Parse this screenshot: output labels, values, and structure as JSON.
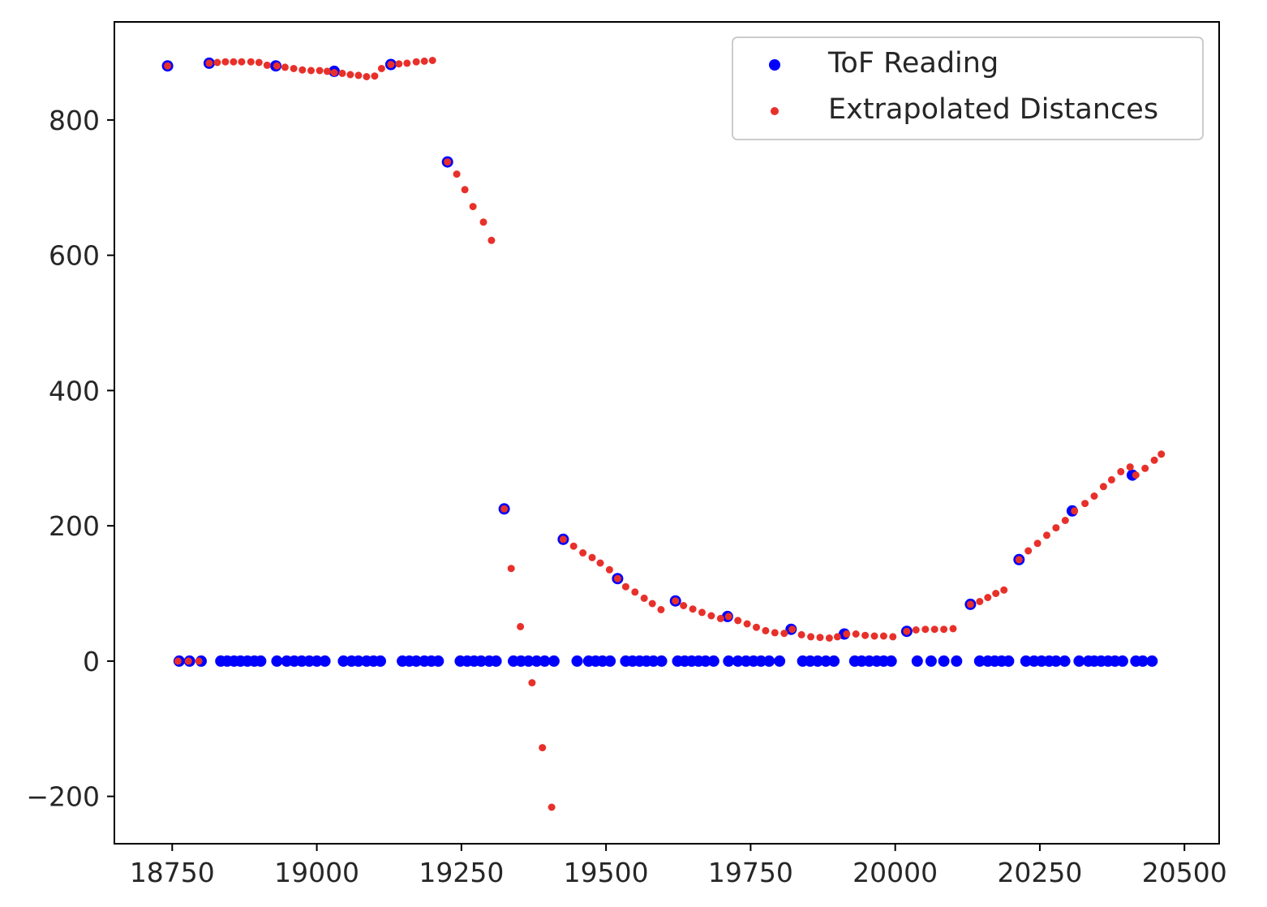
{
  "chart_data": {
    "type": "scatter",
    "title": "",
    "xlabel": "",
    "ylabel": "",
    "xlim": [
      18650,
      20560
    ],
    "ylim": [
      -270,
      945
    ],
    "x_ticks": [
      18750,
      19000,
      19250,
      19500,
      19750,
      20000,
      20250,
      20500
    ],
    "y_ticks": [
      -200,
      0,
      200,
      400,
      600,
      800
    ],
    "x_tick_labels": [
      "18750",
      "19000",
      "19250",
      "19500",
      "19750",
      "20000",
      "20250",
      "20500"
    ],
    "y_tick_labels": [
      "−200",
      "0",
      "200",
      "400",
      "600",
      "800"
    ],
    "grid": false,
    "legend_position": "top-right",
    "colors": {
      "tof": "#0000ff",
      "extrapolated": "#e8302a",
      "axes": "#000000",
      "legend_border": "#cccccc"
    },
    "series": [
      {
        "name": "ToF Reading",
        "x": [
          18742,
          18762,
          18780,
          18800,
          18814,
          18834,
          18845,
          18857,
          18868,
          18880,
          18892,
          18903,
          18929,
          18931,
          18948,
          18961,
          18974,
          18987,
          19000,
          19014,
          19030,
          19046,
          19060,
          19072,
          19086,
          19098,
          19110,
          19128,
          19148,
          19160,
          19172,
          19186,
          19198,
          19210,
          19226,
          19248,
          19260,
          19272,
          19284,
          19298,
          19310,
          19324,
          19340,
          19353,
          19366,
          19380,
          19394,
          19410,
          19426,
          19450,
          19470,
          19482,
          19494,
          19507,
          19520,
          19534,
          19546,
          19558,
          19570,
          19582,
          19596,
          19620,
          19624,
          19636,
          19648,
          19660,
          19672,
          19686,
          19710,
          19712,
          19728,
          19742,
          19755,
          19768,
          19782,
          19800,
          19820,
          19840,
          19853,
          19866,
          19880,
          19894,
          19912,
          19930,
          19942,
          19955,
          19968,
          19980,
          19993,
          20020,
          20038,
          20062,
          20084,
          20106,
          20130,
          20146,
          20160,
          20172,
          20184,
          20196,
          20214,
          20226,
          20240,
          20253,
          20266,
          20278,
          20293,
          20306,
          20318,
          20334,
          20344,
          20356,
          20368,
          20380,
          20393,
          20410,
          20416,
          20428,
          20444
        ],
        "y": [
          880,
          0,
          0,
          0,
          884,
          0,
          0,
          0,
          0,
          0,
          0,
          0,
          880,
          0,
          0,
          0,
          0,
          0,
          0,
          0,
          872,
          0,
          0,
          0,
          0,
          0,
          0,
          882,
          0,
          0,
          0,
          0,
          0,
          0,
          738,
          0,
          0,
          0,
          0,
          0,
          0,
          225,
          0,
          0,
          0,
          0,
          0,
          0,
          180,
          0,
          0,
          0,
          0,
          0,
          122,
          0,
          0,
          0,
          0,
          0,
          0,
          89,
          0,
          0,
          0,
          0,
          0,
          0,
          66,
          0,
          0,
          0,
          0,
          0,
          0,
          0,
          47,
          0,
          0,
          0,
          0,
          0,
          40,
          0,
          0,
          0,
          0,
          0,
          0,
          44,
          0,
          0,
          0,
          0,
          84,
          0,
          0,
          0,
          0,
          0,
          150,
          0,
          0,
          0,
          0,
          0,
          0,
          222,
          0,
          0,
          0,
          0,
          0,
          0,
          0,
          275,
          0,
          0,
          0
        ]
      },
      {
        "name": "Extrapolated Distances",
        "x": [
          18742,
          18760,
          18778,
          18796,
          18814,
          18828,
          18842,
          18856,
          18870,
          18886,
          18900,
          18914,
          18931,
          18945,
          18960,
          18975,
          18990,
          19005,
          19018,
          19030,
          19044,
          19058,
          19072,
          19086,
          19100,
          19112,
          19128,
          19142,
          19156,
          19172,
          19186,
          19200,
          19226,
          19242,
          19256,
          19270,
          19288,
          19302,
          19324,
          19336,
          19352,
          19372,
          19390,
          19406,
          19426,
          19444,
          19460,
          19476,
          19490,
          19506,
          19520,
          19534,
          19550,
          19566,
          19580,
          19595,
          19620,
          19634,
          19650,
          19666,
          19682,
          19698,
          19712,
          19728,
          19744,
          19760,
          19776,
          19792,
          19808,
          19822,
          19838,
          19854,
          19870,
          19886,
          19900,
          19916,
          19932,
          19948,
          19964,
          19980,
          19996,
          20020,
          20036,
          20052,
          20068,
          20084,
          20100,
          20130,
          20146,
          20160,
          20174,
          20188,
          20214,
          20230,
          20246,
          20262,
          20278,
          20294,
          20310,
          20328,
          20344,
          20360,
          20374,
          20390,
          20406,
          20416,
          20432,
          20448,
          20460
        ],
        "y": [
          880,
          0,
          0,
          0,
          884,
          885,
          886,
          886,
          886,
          886,
          885,
          881,
          880,
          878,
          876,
          874,
          873,
          873,
          872,
          870,
          869,
          867,
          866,
          864,
          865,
          876,
          882,
          883,
          884,
          886,
          887,
          888,
          738,
          720,
          697,
          672,
          649,
          622,
          225,
          137,
          51,
          -32,
          -128,
          -216,
          180,
          170,
          160,
          153,
          145,
          135,
          122,
          110,
          102,
          93,
          85,
          76,
          89,
          82,
          77,
          72,
          67,
          63,
          66,
          60,
          55,
          50,
          45,
          42,
          41,
          47,
          39,
          36,
          35,
          34,
          36,
          40,
          40,
          38,
          37,
          37,
          36,
          44,
          46,
          47,
          47,
          47,
          48,
          84,
          88,
          94,
          100,
          105,
          150,
          163,
          174,
          186,
          197,
          208,
          222,
          233,
          244,
          258,
          268,
          280,
          287,
          275,
          285,
          297,
          306
        ]
      }
    ]
  }
}
